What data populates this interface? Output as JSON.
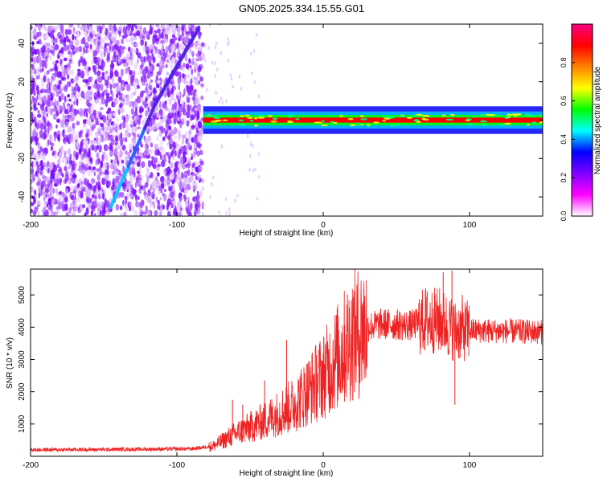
{
  "title": "GN05.2025.334.15.55.G01",
  "chart_data": [
    {
      "type": "heatmap",
      "xlabel": "Height of straight line (km)",
      "ylabel": "Frequency (Hz)",
      "xlim": [
        -200,
        150
      ],
      "ylim": [
        -50,
        50
      ],
      "xticks": [
        -200,
        -100,
        0,
        100
      ],
      "yticks": [
        -40,
        -20,
        0,
        20,
        40
      ],
      "grid": false,
      "colorbar": {
        "label": "Normalized spectral amplitude",
        "range": [
          0,
          1
        ],
        "ticks": [
          "0.0",
          "0.2",
          "0.4",
          "0.6",
          "0.8"
        ],
        "colormap": [
          "#ffffff",
          "#ff00ff",
          "#8000ff",
          "#0000ff",
          "#00ffff",
          "#00ff00",
          "#ffff00",
          "#ff8000",
          "#ff0000",
          "#ff0080"
        ]
      },
      "features": {
        "noise_region_x": [
          -200,
          -82
        ],
        "diagonal_track": [
          [
            -145,
            -45
          ],
          [
            -115,
            8
          ],
          [
            -85,
            48
          ]
        ],
        "carrier_band": {
          "x": [
            -82,
            150
          ],
          "freq": 0,
          "width_hz": 6
        },
        "carrier_colors": {
          "core": "#ff0000",
          "edge": "#0000ff",
          "mid": "#00ff00"
        }
      }
    },
    {
      "type": "line",
      "xlabel": "Height of straight line (km)",
      "ylabel": "SNR (10 * v/v)",
      "xlim": [
        -200,
        150
      ],
      "ylim": [
        0,
        5800
      ],
      "xticks": [
        -200,
        -100,
        0,
        100
      ],
      "yticks": [
        1000,
        2000,
        3000,
        4000,
        5000
      ],
      "grid": false,
      "series": [
        {
          "color": "#ee2222",
          "trend": {
            "x": [
              -200,
              -150,
              -90,
              -75,
              -60,
              -40,
              -20,
              0,
              10,
              20,
              30,
              40,
              60,
              70,
              80,
              90,
              100,
              150
            ],
            "y": [
              200,
              210,
              230,
              320,
              700,
              1100,
              1600,
              2500,
              3100,
              3700,
              4000,
              4100,
              4050,
              4200,
              4200,
              3900,
              3900,
              3850
            ]
          },
          "spikes": [
            [
              -62,
              1750
            ],
            [
              -55,
              1600
            ],
            [
              -40,
              2350
            ],
            [
              -25,
              3600
            ],
            [
              70,
              5200
            ],
            [
              82,
              5700
            ],
            [
              88,
              5750
            ],
            [
              90,
              1600
            ],
            [
              95,
              5000
            ]
          ]
        }
      ]
    }
  ]
}
